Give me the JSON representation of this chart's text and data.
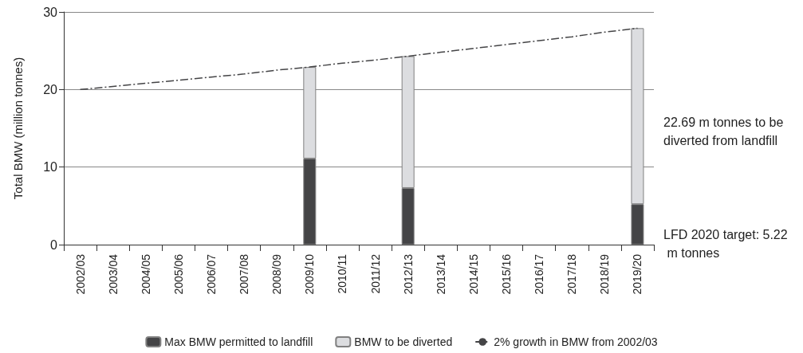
{
  "chart_data": {
    "type": "bar",
    "stacked": true,
    "ylabel": "Total BMW (million tonnes)",
    "categories": [
      "2002/03",
      "2003/04",
      "2004/05",
      "2005/06",
      "2006/07",
      "2007/08",
      "2008/09",
      "2009/10",
      "2010/11",
      "2011/12",
      "2012/13",
      "2013/14",
      "2014/15",
      "2015/16",
      "2016/17",
      "2017/18",
      "2018/19",
      "2019/20"
    ],
    "series": [
      {
        "name": "Max BMW permitted to landfill",
        "color": "#444446",
        "values": [
          null,
          null,
          null,
          null,
          null,
          null,
          null,
          11.1,
          null,
          null,
          7.3,
          null,
          null,
          null,
          null,
          null,
          null,
          5.22
        ]
      },
      {
        "name": "BMW to be diverted",
        "color": "#dcdde0",
        "values": [
          null,
          null,
          null,
          null,
          null,
          null,
          null,
          11.8,
          null,
          null,
          17.0,
          null,
          null,
          null,
          null,
          null,
          null,
          22.69
        ]
      },
      {
        "name": "2% growth in BMW from 2002/03",
        "type": "line",
        "color": "#444446",
        "line_style": "dashed",
        "marker": "none",
        "values": [
          20.0,
          20.4,
          20.8,
          21.2,
          21.6,
          22.0,
          22.5,
          22.9,
          23.4,
          23.8,
          24.3,
          24.8,
          25.3,
          25.8,
          26.3,
          26.8,
          27.4,
          27.9
        ]
      }
    ],
    "ylim": [
      0,
      30
    ],
    "yticks": [
      0,
      10,
      20,
      30
    ],
    "grid": "y",
    "legend": "bottom",
    "annotations": [
      "22.69 m tonnes to be diverted from landfill",
      "LFD 2020 target: 5.22 m tonnes"
    ]
  }
}
